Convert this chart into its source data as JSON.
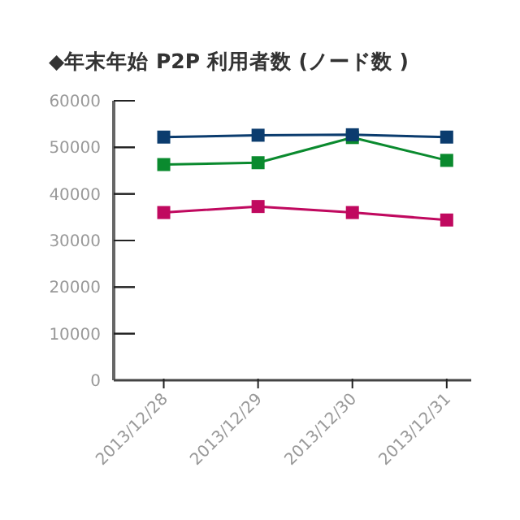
{
  "chart_data": {
    "type": "line",
    "title": "◆年末年始 P2P 利用者数 (ノード数 )",
    "categories": [
      "2013/12/28",
      "2013/12/29",
      "2013/12/30",
      "2013/12/31"
    ],
    "series": [
      {
        "color": "#0b3c6e",
        "values": [
          52200,
          52600,
          52700,
          52200
        ]
      },
      {
        "color": "#0a8a2e",
        "values": [
          46300,
          46700,
          52100,
          47200
        ]
      },
      {
        "color": "#c0095f",
        "values": [
          36000,
          37300,
          36000,
          34400
        ]
      }
    ],
    "ylim": [
      0,
      60000
    ],
    "yticks": [
      0,
      10000,
      20000,
      30000,
      40000,
      50000,
      60000
    ],
    "marker": "square",
    "grid": false
  }
}
